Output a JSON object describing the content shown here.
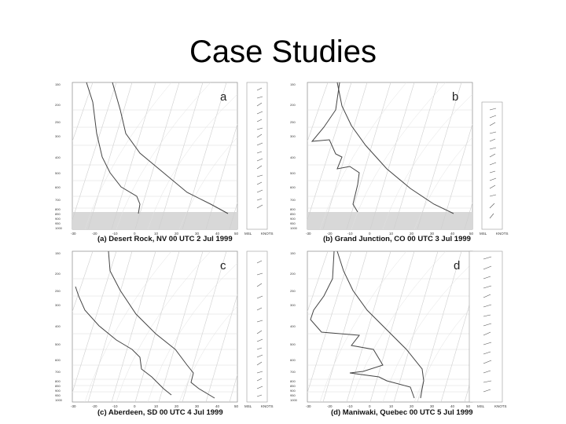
{
  "slide": {
    "title": "Case Studies"
  },
  "panels": [
    {
      "letter": "a",
      "caption": "(a) Desert Rock, NV 00 UTC 2 Jul 1999",
      "x_ticks": [
        "-30",
        "-20",
        "-10",
        "0",
        "10",
        "20",
        "30",
        "40",
        "50"
      ],
      "p_ticks": [
        "150",
        "200",
        "250",
        "300",
        "400",
        "500",
        "600",
        "700",
        "800",
        "850",
        "900",
        "950",
        "1000"
      ]
    },
    {
      "letter": "b",
      "caption": "(b) Grand Junction, CO 00 UTC 3 Jul 1999",
      "x_ticks": [
        "-30",
        "-20",
        "-10",
        "0",
        "10",
        "20",
        "30",
        "40",
        "50"
      ],
      "p_ticks": [
        "150",
        "200",
        "250",
        "300",
        "400",
        "500",
        "600",
        "700",
        "800",
        "850",
        "900",
        "950",
        "1000"
      ]
    },
    {
      "letter": "c",
      "caption": "(c) Aberdeen, SD 00 UTC 4 Jul 1999",
      "x_ticks": [
        "-30",
        "-20",
        "-10",
        "0",
        "10",
        "20",
        "30",
        "40",
        "50"
      ],
      "p_ticks": [
        "150",
        "200",
        "250",
        "300",
        "400",
        "500",
        "600",
        "700",
        "800",
        "850",
        "900",
        "950",
        "1000"
      ]
    },
    {
      "letter": "d",
      "caption": "(d) Maniwaki, Quebec 00 UTC 5 Jul 1999",
      "x_ticks": [
        "-30",
        "-20",
        "-10",
        "0",
        "10",
        "20",
        "30",
        "40",
        "50"
      ],
      "p_ticks": [
        "150",
        "200",
        "250",
        "300",
        "400",
        "500",
        "600",
        "700",
        "800",
        "850",
        "900",
        "950",
        "1000"
      ]
    }
  ],
  "wind_axis": {
    "msl_label": "MSL",
    "knots_label": "KNOTS"
  }
}
